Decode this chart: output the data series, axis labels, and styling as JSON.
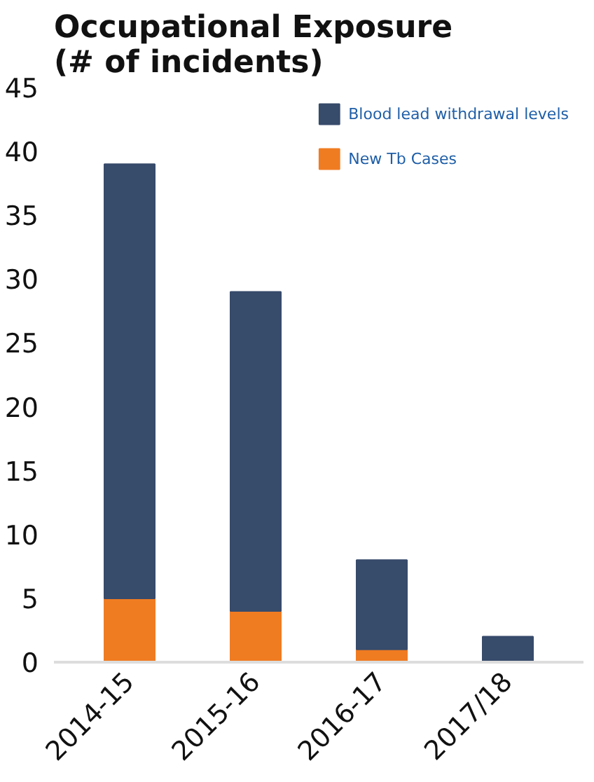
{
  "chart_data": {
    "type": "bar",
    "title": "Occupational Exposure\n(# of incidents)",
    "categories": [
      "2014-15",
      "2015-16",
      "2016-17",
      "2017/18"
    ],
    "stacked": true,
    "series": [
      {
        "name": "New Tb Cases",
        "color": "#f07c22",
        "values": [
          5,
          4,
          1,
          0
        ]
      },
      {
        "name": "Blood lead withdrawal levels",
        "color": "#374b6b",
        "values": [
          34,
          25,
          7,
          2
        ]
      }
    ],
    "ylim": [
      0,
      45
    ],
    "yticks": [
      0,
      5,
      10,
      15,
      20,
      25,
      30,
      35,
      40,
      45
    ],
    "grid": false,
    "legend": "top right"
  }
}
